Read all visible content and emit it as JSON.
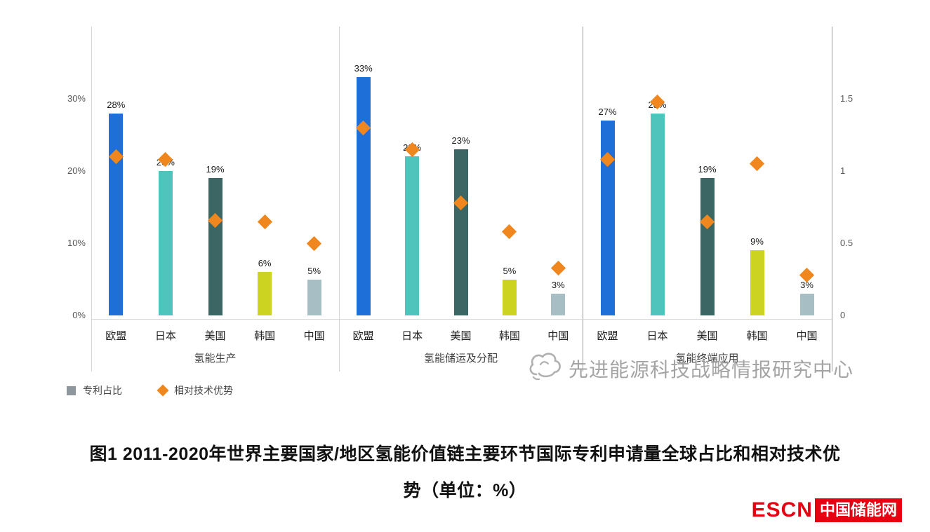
{
  "chart_data": {
    "type": "bar",
    "title": "图1 2011-2020年世界主要国家/地区氢能价值链主要环节国际专利申请量全球占比和相对技术优势（单位：%）",
    "categories": [
      "欧盟",
      "日本",
      "美国",
      "韩国",
      "中国"
    ],
    "group_labels": [
      "氢能生产",
      "氢能储运及分配",
      "氢能终端应用"
    ],
    "series": [
      {
        "name": "专利占比",
        "type": "bar",
        "axis": "left",
        "unit": "%",
        "values_by_group": [
          [
            28,
            20,
            19,
            6,
            5
          ],
          [
            33,
            22,
            23,
            5,
            3
          ],
          [
            27,
            28,
            19,
            9,
            3
          ]
        ]
      },
      {
        "name": "相对技术优势",
        "type": "scatter-diamond",
        "axis": "right",
        "values_by_group": [
          [
            1.1,
            1.08,
            0.66,
            0.65,
            0.5
          ],
          [
            1.3,
            1.15,
            0.78,
            0.58,
            0.33
          ],
          [
            1.08,
            1.48,
            0.65,
            1.05,
            0.28
          ]
        ]
      }
    ],
    "left_axis": {
      "labels": [
        "0%",
        "10%",
        "20%",
        "30%"
      ],
      "values": [
        0,
        10,
        20,
        30
      ],
      "range": [
        0,
        40
      ]
    },
    "right_axis": {
      "labels": [
        "0",
        "0.5",
        "1",
        "1.5"
      ],
      "values": [
        0,
        0.5,
        1,
        1.5
      ],
      "range": [
        0,
        2
      ]
    },
    "bar_colors": [
      "#1f6fd8",
      "#4ec4bd",
      "#3b6664",
      "#ccd321",
      "#a7bec5"
    ],
    "diamond_color": "#f0871e",
    "legend": [
      {
        "label": "专利占比",
        "marker": "square",
        "color": "#8e979e"
      },
      {
        "label": "相对技术优势",
        "marker": "diamond",
        "color": "#f0871e"
      }
    ],
    "grid": false,
    "legend_position": "bottom-left"
  },
  "watermark": {
    "text": "先进能源科技战略情报研究中心"
  },
  "caption": {
    "line1": "图1 2011-2020年世界主要国家/地区氢能价值链主要环节国际专利申请量全球占比和相对技术优",
    "line2": "势（单位：%）"
  },
  "footer_logo": {
    "en": "ESCN",
    "cn": "中国储能网",
    "color": "#e60012"
  }
}
